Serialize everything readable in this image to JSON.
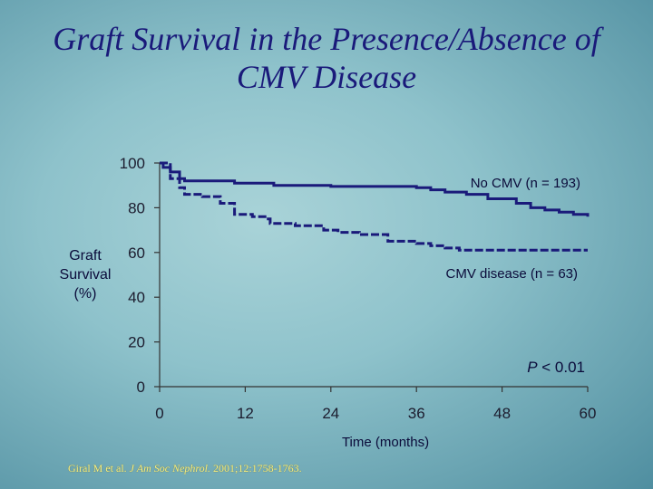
{
  "chart_data": {
    "type": "line",
    "title_lines": [
      "Graft Survival in the Presence/Absence of",
      "CMV Disease"
    ],
    "ylabel_lines": [
      "Graft",
      "Survival",
      "(%)"
    ],
    "xlabel": "Time (months)",
    "xlim": [
      0,
      60
    ],
    "ylim": [
      0,
      100
    ],
    "x_ticks": [
      "0",
      "12",
      "24",
      "36",
      "48",
      "60"
    ],
    "y_ticks": [
      "0",
      "20",
      "40",
      "60",
      "80",
      "100"
    ],
    "series": [
      {
        "name": "No CMV (n = 193)",
        "style": "solid",
        "color": "#1a1a7a",
        "points": [
          [
            0,
            100
          ],
          [
            0.5,
            98
          ],
          [
            1.5,
            96
          ],
          [
            2.8,
            93
          ],
          [
            3.5,
            92
          ],
          [
            6,
            92
          ],
          [
            10.5,
            91
          ],
          [
            16,
            90
          ],
          [
            20,
            90
          ],
          [
            24,
            89.5
          ],
          [
            28,
            89.5
          ],
          [
            33,
            89.5
          ],
          [
            36,
            89
          ],
          [
            38,
            88
          ],
          [
            40,
            87
          ],
          [
            43,
            86
          ],
          [
            46,
            84
          ],
          [
            50,
            82
          ],
          [
            52,
            80
          ],
          [
            54,
            79
          ],
          [
            56,
            78
          ],
          [
            58,
            77
          ],
          [
            60,
            76
          ]
        ]
      },
      {
        "name": "CMV disease (n = 63)",
        "style": "dashed",
        "color": "#1a1a7a",
        "points": [
          [
            0,
            100
          ],
          [
            1.5,
            93
          ],
          [
            2.8,
            89
          ],
          [
            3.5,
            86
          ],
          [
            6,
            85
          ],
          [
            8.5,
            82
          ],
          [
            10.5,
            77
          ],
          [
            13,
            76
          ],
          [
            15,
            75
          ],
          [
            15.5,
            73
          ],
          [
            19,
            72
          ],
          [
            23,
            70
          ],
          [
            25,
            69
          ],
          [
            28,
            68
          ],
          [
            31,
            68
          ],
          [
            32,
            65
          ],
          [
            36,
            64
          ],
          [
            38,
            63
          ],
          [
            40,
            62
          ],
          [
            42,
            61
          ],
          [
            44,
            61
          ],
          [
            46,
            61
          ],
          [
            48,
            61
          ],
          [
            60,
            61
          ]
        ]
      }
    ],
    "annotations": {
      "no_cmv": "No CMV (n = 193)",
      "cmv": "CMV disease (n = 63)",
      "p_prefix": "P",
      "p_rest": " < 0.01"
    }
  },
  "citation": {
    "authors": "Giral M et al.",
    "journal": "J Am Soc Nephrol.",
    "details": "2001;12:1758-1763."
  },
  "colors": {
    "line": "#1a1a7a",
    "title": "#1a1a7a",
    "citation": "#f4ef86"
  }
}
